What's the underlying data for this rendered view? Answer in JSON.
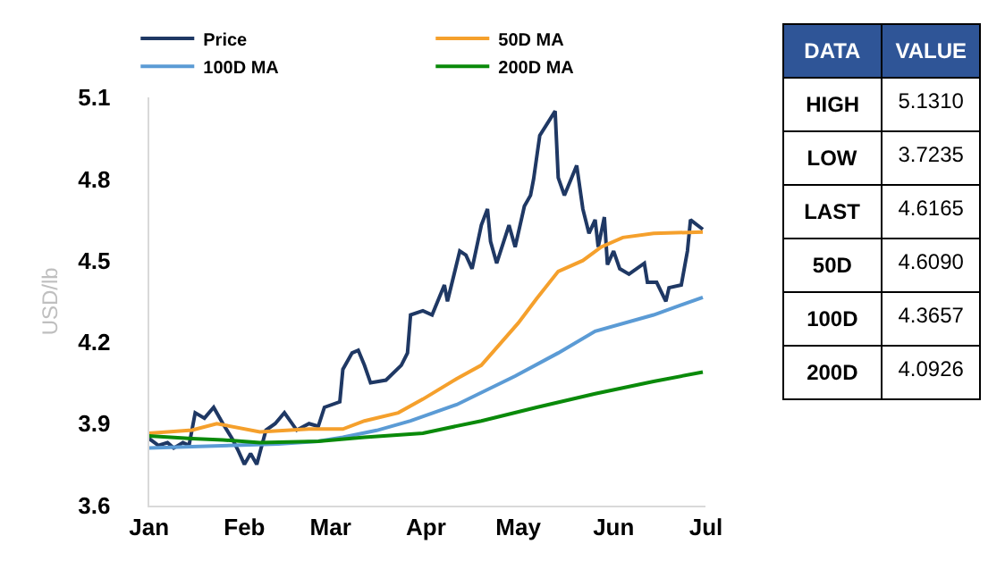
{
  "chart_data": [
    {
      "type": "line",
      "ylabel": "USD/lb",
      "legend": "top",
      "grid": false,
      "marker": "none",
      "line_style": "solid",
      "xlim": [
        "--01-01",
        "--07-01"
      ],
      "xticks": [
        {
          "value": "--01-01",
          "label": "Jan"
        },
        {
          "value": "--02-01",
          "label": "Feb"
        },
        {
          "value": "--03-01",
          "label": "Mar"
        },
        {
          "value": "--04-01",
          "label": "Apr"
        },
        {
          "value": "--05-01",
          "label": "May"
        },
        {
          "value": "--06-01",
          "label": "Jun"
        },
        {
          "value": "--07-01",
          "label": "Jul"
        }
      ],
      "ylim": [
        3.6,
        5.1
      ],
      "yticks": [
        3.6,
        3.9,
        4.2,
        4.5,
        4.8,
        5.1
      ],
      "series": [
        {
          "name": "Price",
          "color": "#1f3864",
          "x": [
            "--01-01",
            "--01-04",
            "--01-07",
            "--01-09",
            "--01-12",
            "--01-14",
            "--01-16",
            "--01-19",
            "--01-22",
            "--01-25",
            "--01-28",
            "--01-30",
            "--02-01",
            "--02-03",
            "--02-05",
            "--02-08",
            "--02-11",
            "--02-14",
            "--02-18",
            "--02-22",
            "--02-25",
            "--02-27",
            "--03-04",
            "--03-05",
            "--03-08",
            "--03-10",
            "--03-12",
            "--03-14",
            "--03-19",
            "--03-24",
            "--03-26",
            "--03-27",
            "--03-31",
            "--04-03",
            "--04-07",
            "--04-08",
            "--04-12",
            "--04-14",
            "--04-16",
            "--04-19",
            "--04-21",
            "--04-22",
            "--04-24",
            "--04-28",
            "--04-30",
            "--05-03",
            "--05-05",
            "--05-06",
            "--05-08",
            "--05-13",
            "--05-14",
            "--05-16",
            "--05-20",
            "--05-22",
            "--05-24",
            "--05-26",
            "--05-27",
            "--05-29",
            "--05-30",
            "--06-01",
            "--06-03",
            "--06-06",
            "--06-11",
            "--06-12",
            "--06-15",
            "--06-18",
            "--06-19",
            "--06-23",
            "--06-25",
            "--06-26",
            "--06-30"
          ],
          "values": [
            3.845,
            3.82,
            3.83,
            3.81,
            3.83,
            3.82,
            3.94,
            3.92,
            3.96,
            3.9,
            3.845,
            3.8,
            3.75,
            3.79,
            3.75,
            3.876,
            3.9,
            3.94,
            3.876,
            3.9,
            3.89,
            3.96,
            3.98,
            4.1,
            4.16,
            4.17,
            4.115,
            4.05,
            4.06,
            4.115,
            4.16,
            4.3,
            4.315,
            4.3,
            4.41,
            4.35,
            4.535,
            4.52,
            4.47,
            4.63,
            4.69,
            4.57,
            4.49,
            4.63,
            4.55,
            4.7,
            4.74,
            4.8,
            4.96,
            5.05,
            4.805,
            4.74,
            4.85,
            4.69,
            4.6,
            4.65,
            4.55,
            4.66,
            4.485,
            4.535,
            4.47,
            4.45,
            4.49,
            4.42,
            4.42,
            4.35,
            4.4,
            4.41,
            4.535,
            4.65,
            4.615
          ]
        },
        {
          "name": "50D MA",
          "color": "#f5a02c",
          "x": [
            "--01-01",
            "--01-15",
            "--01-23",
            "--02-06",
            "--02-22",
            "--03-05",
            "--03-12",
            "--03-23",
            "--03-31",
            "--04-11",
            "--04-19",
            "--05-01",
            "--05-07",
            "--05-14",
            "--05-22",
            "--05-28",
            "--06-04",
            "--06-14",
            "--06-30"
          ],
          "values": [
            3.865,
            3.876,
            3.9,
            3.87,
            3.88,
            3.88,
            3.91,
            3.94,
            3.99,
            4.065,
            4.115,
            4.27,
            4.36,
            4.46,
            4.5,
            4.55,
            4.585,
            4.6,
            4.605
          ]
        },
        {
          "name": "100D MA",
          "color": "#5b9bd5",
          "x": [
            "--01-01",
            "--01-15",
            "--02-12",
            "--02-25",
            "--03-05",
            "--03-16",
            "--03-27",
            "--04-11",
            "--04-30",
            "--05-14",
            "--05-26",
            "--06-14",
            "--06-30"
          ],
          "values": [
            3.81,
            3.815,
            3.825,
            3.835,
            3.85,
            3.875,
            3.91,
            3.97,
            4.075,
            4.16,
            4.24,
            4.3,
            4.365
          ]
        },
        {
          "name": "200D MA",
          "color": "#0a8a0a",
          "x": [
            "--01-01",
            "--01-15",
            "--01-25",
            "--02-06",
            "--02-25",
            "--03-12",
            "--03-31",
            "--04-19",
            "--05-07",
            "--05-26",
            "--06-14",
            "--06-30"
          ],
          "values": [
            3.855,
            3.845,
            3.84,
            3.83,
            3.835,
            3.85,
            3.865,
            3.91,
            3.96,
            4.01,
            4.055,
            4.09
          ]
        }
      ]
    },
    {
      "type": "other",
      "xlabel": "DATA",
      "ylabel": "VALUE",
      "categories": [
        "HIGH",
        "LOW",
        "LAST",
        "50D",
        "100D",
        "200D"
      ],
      "value_labels": [
        "5.1310",
        "3.7235",
        "4.6165",
        "4.6090",
        "4.3657",
        "4.0926"
      ]
    }
  ]
}
